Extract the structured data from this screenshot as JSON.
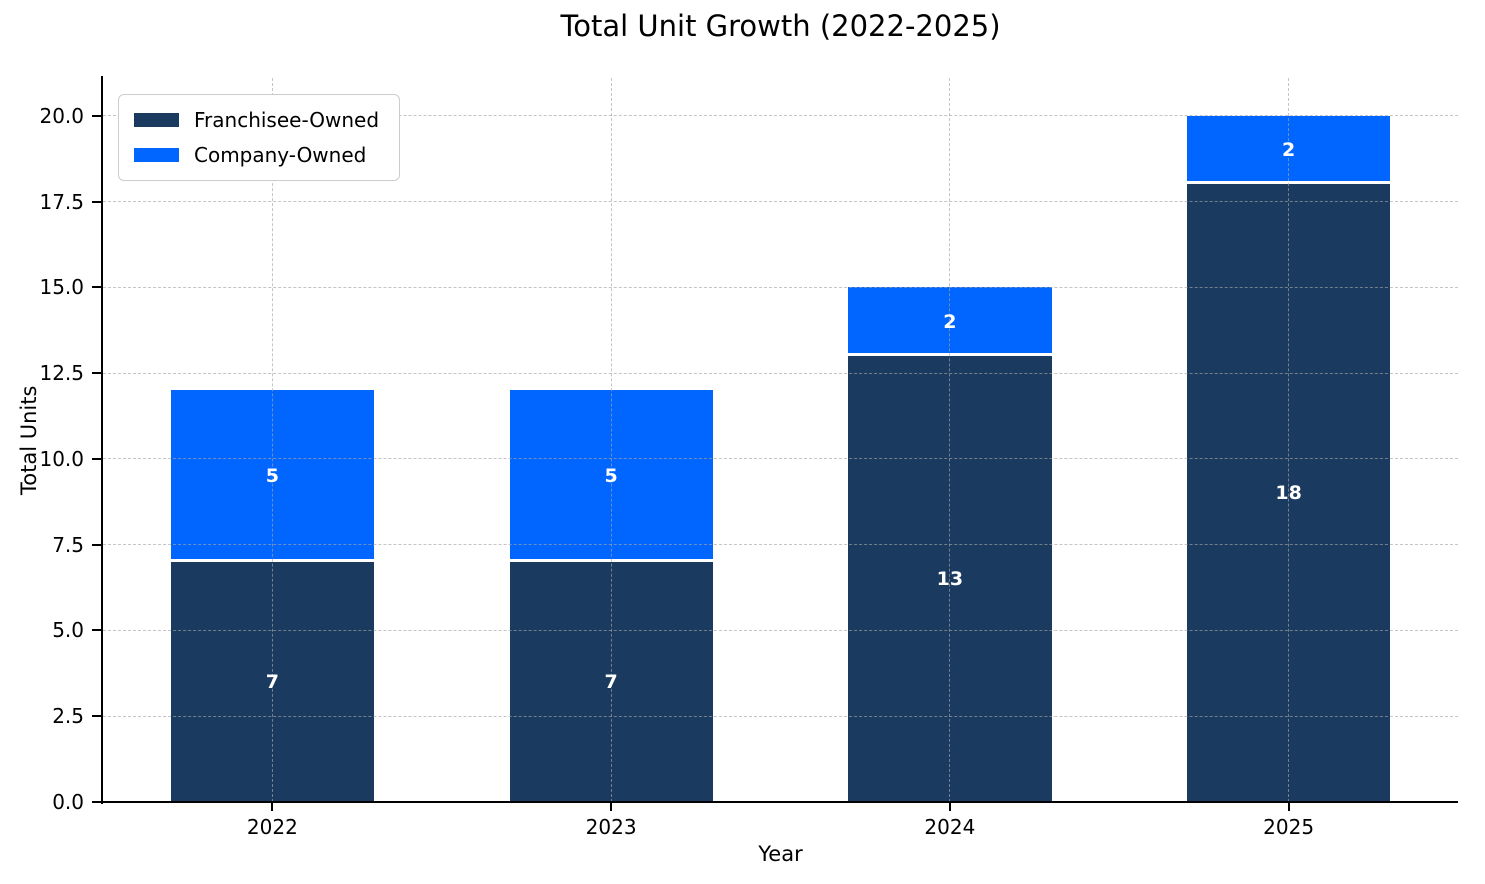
{
  "chart_data": {
    "type": "bar",
    "stacked": true,
    "title": "Total Unit Growth (2022-2025)",
    "xlabel": "Year",
    "ylabel": "Total Units",
    "categories": [
      "2022",
      "2023",
      "2024",
      "2025"
    ],
    "series": [
      {
        "name": "Franchisee-Owned",
        "color": "#1a3a5f",
        "values": [
          7,
          7,
          13,
          18
        ]
      },
      {
        "name": "Company-Owned",
        "color": "#0066ff",
        "values": [
          5,
          5,
          2,
          2
        ]
      }
    ],
    "ytick_labels": [
      "0.0",
      "2.5",
      "5.0",
      "7.5",
      "10.0",
      "12.5",
      "15.0",
      "17.5",
      "20.0"
    ],
    "yticks": [
      0,
      2.5,
      5,
      7.5,
      10,
      12.5,
      15,
      17.5,
      20
    ],
    "ylim": [
      0,
      21.1
    ],
    "bar_width_fraction": 0.6,
    "grid": "dashed-both-axes-over-bars",
    "legend_position": "upper-left",
    "segment_separator_color": "#ffffff",
    "value_label_color": "#ffffff"
  }
}
